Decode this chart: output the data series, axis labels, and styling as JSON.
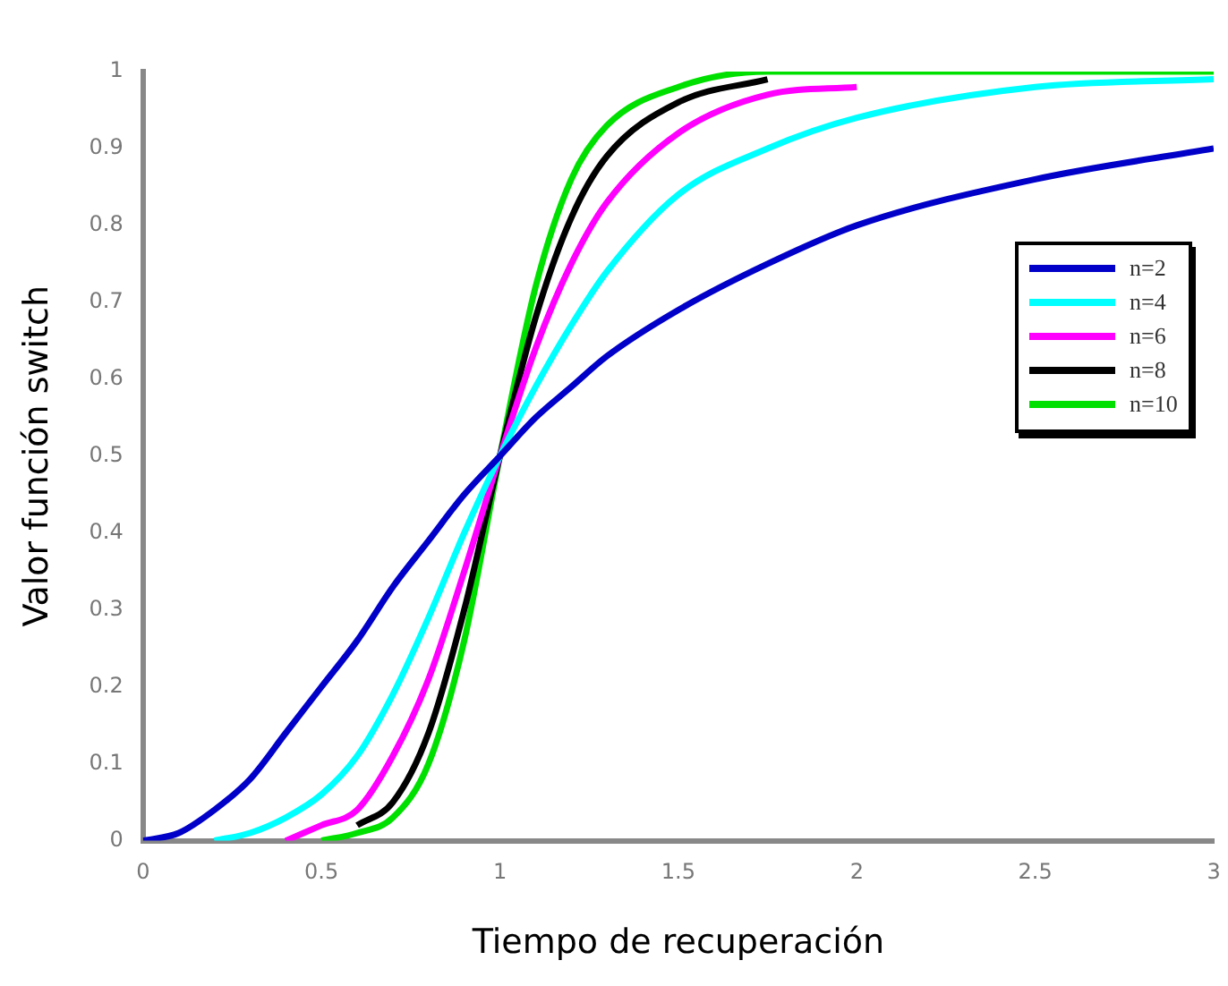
{
  "chart_data": {
    "type": "line",
    "xlabel": "Tiempo de recuperación",
    "ylabel": "Valor función switch",
    "series": [
      {
        "name": "n=2",
        "color": "#0000c8",
        "x": [
          0,
          0.1,
          0.2,
          0.3,
          0.4,
          0.5,
          0.6,
          0.7,
          0.8,
          0.9,
          1,
          1.1,
          1.2,
          1.3,
          1.5,
          1.75,
          2,
          2.5,
          3
        ],
        "values": [
          0,
          0.01,
          0.04,
          0.08,
          0.14,
          0.2,
          0.26,
          0.33,
          0.39,
          0.45,
          0.5,
          0.55,
          0.59,
          0.63,
          0.69,
          0.75,
          0.8,
          0.86,
          0.9
        ]
      },
      {
        "name": "n=4",
        "color": "#00ffff",
        "x": [
          0.2,
          0.3,
          0.4,
          0.5,
          0.6,
          0.7,
          0.8,
          0.9,
          1,
          1.1,
          1.2,
          1.3,
          1.5,
          1.75,
          2,
          2.5,
          3
        ],
        "values": [
          0,
          0.01,
          0.03,
          0.06,
          0.11,
          0.19,
          0.29,
          0.4,
          0.5,
          0.59,
          0.67,
          0.74,
          0.84,
          0.9,
          0.94,
          0.98,
          0.99
        ]
      },
      {
        "name": "n=6",
        "color": "#ff00ff",
        "x": [
          0.4,
          0.5,
          0.6,
          0.7,
          0.8,
          0.9,
          1,
          1.1,
          1.2,
          1.3,
          1.5,
          1.75,
          2
        ],
        "values": [
          0,
          0.02,
          0.04,
          0.11,
          0.21,
          0.35,
          0.5,
          0.64,
          0.75,
          0.83,
          0.92,
          0.97,
          0.98
        ]
      },
      {
        "name": "n=8",
        "color": "#000000",
        "x": [
          0.6,
          0.7,
          0.8,
          0.9,
          1,
          1.1,
          1.2,
          1.3,
          1.5,
          1.75
        ],
        "values": [
          0.02,
          0.05,
          0.14,
          0.3,
          0.5,
          0.68,
          0.81,
          0.89,
          0.96,
          0.99
        ]
      },
      {
        "name": "n=10",
        "color": "#00e000",
        "x": [
          0.5,
          0.6,
          0.7,
          0.8,
          0.9,
          1,
          1.1,
          1.2,
          1.3,
          1.5,
          1.75,
          2,
          2.5,
          3
        ],
        "values": [
          0,
          0.01,
          0.03,
          0.1,
          0.26,
          0.5,
          0.72,
          0.86,
          0.93,
          0.98,
          1,
          1,
          1,
          1
        ]
      }
    ],
    "xlim": [
      0,
      3
    ],
    "xticks": [
      0,
      0.5,
      1,
      1.5,
      2,
      2.5,
      3
    ],
    "ylim": [
      0,
      1
    ],
    "yticks": [
      0,
      0.1,
      0.2,
      0.3,
      0.4,
      0.5,
      0.6,
      0.7,
      0.8,
      0.9,
      1
    ],
    "legend": "right",
    "marker": "none",
    "line_style": "solid"
  }
}
